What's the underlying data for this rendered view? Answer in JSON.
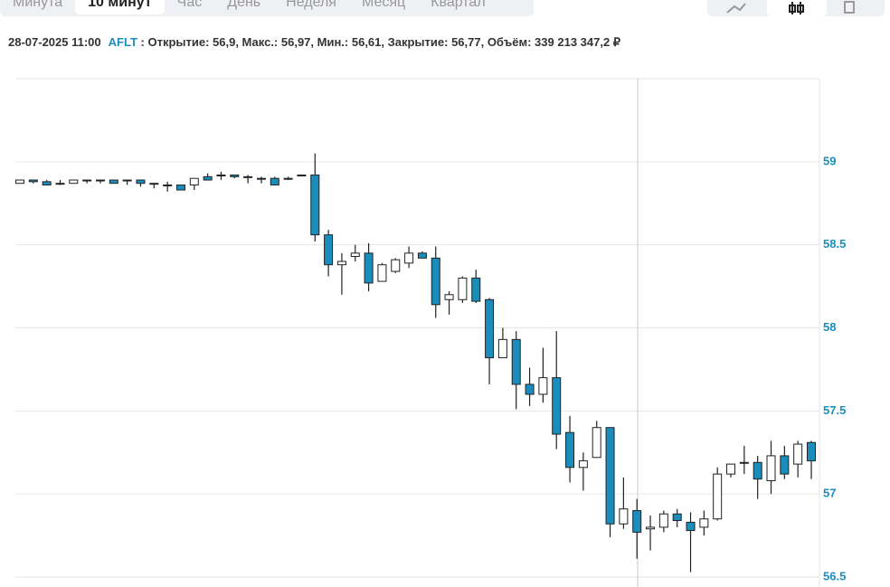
{
  "tabs": [
    "Минута",
    "10 минут",
    "Час",
    "День",
    "Неделя",
    "Месяц",
    "Квартал"
  ],
  "info": {
    "datetime": "28-07-2025 11:00",
    "ticker": "AFLT",
    "text": " : Открытие: 56,9, Макс.: 56,97, Мин.: 56,61, Закрытие: 56,77, Объём: 339 213 347,2 ₽"
  },
  "chart_data": {
    "type": "candlestick",
    "up_color": "#ffffff",
    "down_color": "#1a8dbd",
    "ylim": [
      56.5,
      59.5
    ],
    "yticks": [
      56.5,
      57,
      57.5,
      58,
      58.5,
      59
    ],
    "grid": true,
    "open": [
      58.87,
      58.89,
      58.88,
      58.87,
      58.87,
      58.89,
      58.89,
      58.89,
      58.89,
      58.89,
      58.87,
      58.86,
      58.86,
      58.86,
      58.91,
      58.92,
      58.92,
      58.91,
      58.9,
      58.9,
      58.9,
      58.92,
      58.92,
      58.56,
      58.38,
      58.43,
      58.45,
      58.28,
      58.34,
      58.39,
      58.45,
      58.42,
      58.17,
      58.17,
      58.3,
      58.17,
      57.82,
      57.93,
      57.66,
      57.6,
      57.7,
      57.37,
      57.16,
      57.22,
      57.4,
      56.82,
      56.9,
      56.79,
      56.8,
      56.88,
      56.83,
      56.8,
      56.85,
      57.12,
      57.19,
      57.19,
      57.08,
      57.23,
      57.18,
      57.31
    ],
    "high": [
      58.89,
      58.89,
      58.89,
      58.89,
      58.89,
      58.89,
      58.89,
      58.89,
      58.89,
      58.89,
      58.87,
      58.88,
      58.86,
      58.9,
      58.93,
      58.94,
      58.92,
      58.92,
      58.91,
      58.91,
      58.91,
      58.92,
      59.05,
      58.59,
      58.45,
      58.5,
      58.51,
      58.39,
      58.42,
      58.49,
      58.46,
      58.49,
      58.22,
      58.31,
      58.35,
      58.18,
      58.0,
      57.98,
      57.76,
      57.88,
      57.98,
      57.47,
      57.25,
      57.44,
      57.4,
      57.1,
      56.97,
      56.87,
      56.9,
      56.91,
      56.89,
      56.9,
      57.16,
      57.18,
      57.29,
      57.23,
      57.32,
      57.29,
      57.32,
      57.32
    ],
    "low": [
      58.87,
      58.87,
      58.86,
      58.86,
      58.87,
      58.87,
      58.87,
      58.87,
      58.86,
      58.85,
      58.84,
      58.82,
      58.83,
      58.83,
      58.89,
      58.89,
      58.9,
      58.87,
      58.87,
      58.86,
      58.89,
      58.92,
      58.52,
      58.31,
      58.2,
      58.4,
      58.22,
      58.28,
      58.33,
      58.36,
      58.42,
      58.06,
      58.08,
      58.15,
      58.15,
      57.66,
      57.82,
      57.51,
      57.53,
      57.55,
      57.27,
      57.07,
      57.02,
      57.22,
      56.74,
      56.79,
      56.61,
      56.66,
      56.77,
      56.8,
      56.53,
      56.75,
      56.84,
      57.1,
      57.12,
      56.97,
      57.0,
      57.09,
      57.1,
      57.09
    ],
    "close": [
      58.89,
      58.88,
      58.86,
      58.87,
      58.89,
      58.89,
      58.89,
      58.87,
      58.89,
      58.87,
      58.87,
      58.86,
      58.83,
      58.9,
      58.89,
      58.92,
      58.91,
      58.91,
      58.9,
      58.86,
      58.9,
      58.92,
      58.56,
      58.38,
      58.4,
      58.45,
      58.27,
      58.38,
      58.41,
      58.45,
      58.42,
      58.14,
      58.2,
      58.3,
      58.16,
      57.82,
      57.93,
      57.66,
      57.6,
      57.7,
      57.36,
      57.16,
      57.2,
      57.4,
      56.82,
      56.91,
      56.77,
      56.8,
      56.88,
      56.84,
      56.78,
      56.85,
      57.12,
      57.18,
      57.19,
      57.09,
      57.23,
      57.12,
      57.3,
      57.2
    ]
  }
}
